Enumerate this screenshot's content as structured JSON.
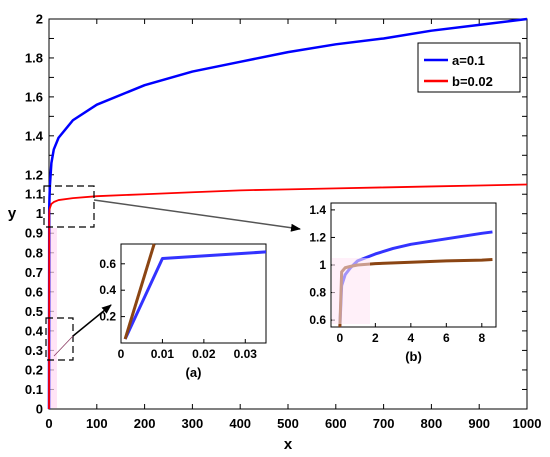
{
  "chart_data": [
    {
      "type": "line",
      "panel": "main",
      "xlabel": "x",
      "ylabel": "y",
      "xlim": [
        0,
        1000
      ],
      "ylim": [
        0,
        2
      ],
      "xticks": [
        0,
        100,
        200,
        300,
        400,
        500,
        600,
        700,
        800,
        900,
        1000
      ],
      "yticks": [
        0,
        0.1,
        0.2,
        0.3,
        0.4,
        0.5,
        0.6,
        0.7,
        0.8,
        0.9,
        1,
        1.1,
        1.2,
        1.3,
        1.4,
        1.5,
        1.6,
        1.7,
        1.8,
        1.9,
        2
      ],
      "ytick_labels": [
        "0",
        "0.1",
        "0.2",
        "0.3",
        "0.4",
        "0.5",
        "0.6",
        "0.7",
        "0.8",
        "0.9",
        "1",
        "1.1",
        "1.2",
        "1.4",
        "1.6",
        "1.8",
        "2"
      ],
      "grid": false,
      "legend": "top-right",
      "series": [
        {
          "name": "a=0.1",
          "color": "#0000ff",
          "x": [
            0,
            0.5,
            1,
            2,
            5,
            10,
            20,
            50,
            100,
            200,
            300,
            400,
            500,
            600,
            700,
            800,
            900,
            1000
          ],
          "y": [
            0,
            1.03,
            1.08,
            1.15,
            1.26,
            1.33,
            1.39,
            1.48,
            1.56,
            1.66,
            1.73,
            1.78,
            1.83,
            1.87,
            1.9,
            1.94,
            1.97,
            2.0
          ]
        },
        {
          "name": "b=0.02",
          "color": "#ff0000",
          "x": [
            0,
            0.5,
            1,
            2,
            5,
            10,
            20,
            50,
            100,
            200,
            300,
            400,
            500,
            600,
            700,
            800,
            900,
            1000
          ],
          "y": [
            0,
            1.0,
            1.02,
            1.03,
            1.05,
            1.06,
            1.07,
            1.08,
            1.09,
            1.1,
            1.11,
            1.12,
            1.125,
            1.13,
            1.135,
            1.14,
            1.145,
            1.15
          ]
        }
      ]
    },
    {
      "type": "line",
      "panel": "inset-a",
      "label": "(a)",
      "xlim": [
        0,
        0.035
      ],
      "ylim": [
        0,
        0.75
      ],
      "xticks": [
        0,
        0.01,
        0.02,
        0.03
      ],
      "xtick_labels": [
        "0",
        "0.01",
        "0.02",
        "0.03"
      ],
      "yticks": [
        0.2,
        0.4,
        0.6
      ],
      "ytick_labels": [
        "0.2",
        "0.4",
        "0.6"
      ],
      "series": [
        {
          "color": "#3333ff",
          "x": [
            0.001,
            0.01,
            0.02,
            0.03,
            0.035
          ],
          "y": [
            0.03,
            0.64,
            0.66,
            0.68,
            0.69
          ]
        },
        {
          "color": "#8b4513",
          "x": [
            0.001,
            0.008
          ],
          "y": [
            0.03,
            0.75
          ]
        }
      ]
    },
    {
      "type": "line",
      "panel": "inset-b",
      "label": "(b)",
      "xlim": [
        -0.5,
        8.8
      ],
      "ylim": [
        0.55,
        1.45
      ],
      "xticks": [
        0,
        2,
        4,
        6,
        8
      ],
      "xtick_labels": [
        "0",
        "2",
        "4",
        "6",
        "8"
      ],
      "yticks": [
        0.6,
        0.8,
        1,
        1.2,
        1.4
      ],
      "ytick_labels": [
        "0.6",
        "0.8",
        "1",
        "1.2",
        "1.4"
      ],
      "series": [
        {
          "color": "#3333ff",
          "x": [
            0,
            0.1,
            0.3,
            0.6,
            1,
            2,
            3,
            4,
            5,
            6,
            7,
            8,
            8.6
          ],
          "y": [
            0.55,
            0.85,
            0.93,
            0.98,
            1.03,
            1.08,
            1.12,
            1.15,
            1.17,
            1.19,
            1.21,
            1.23,
            1.24
          ]
        },
        {
          "color": "#8b4513",
          "x": [
            0,
            0.1,
            0.3,
            0.6,
            1,
            2,
            4,
            6,
            8,
            8.6
          ],
          "y": [
            0.55,
            0.95,
            0.98,
            0.99,
            1.0,
            1.01,
            1.02,
            1.03,
            1.035,
            1.04
          ]
        }
      ]
    }
  ]
}
